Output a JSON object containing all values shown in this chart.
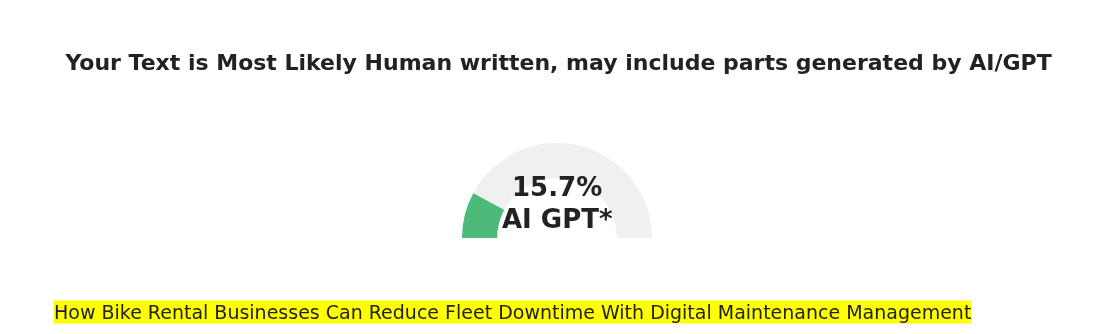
{
  "chart_data": {
    "type": "donut",
    "title": "Your Text is Most Likely Human written, may include parts generated by AI/GPT",
    "categories": [
      null,
      null
    ],
    "values": [
      15.7,
      84.3
    ],
    "colors": [
      "#4cbb7a",
      "#f0f0f0"
    ],
    "annotations": [
      "15.7%",
      "AI GPT*",
      "How Bike Rental Businesses Can Reduce Fleet Downtime With Digital Maintenance Management"
    ],
    "legend": false
  }
}
